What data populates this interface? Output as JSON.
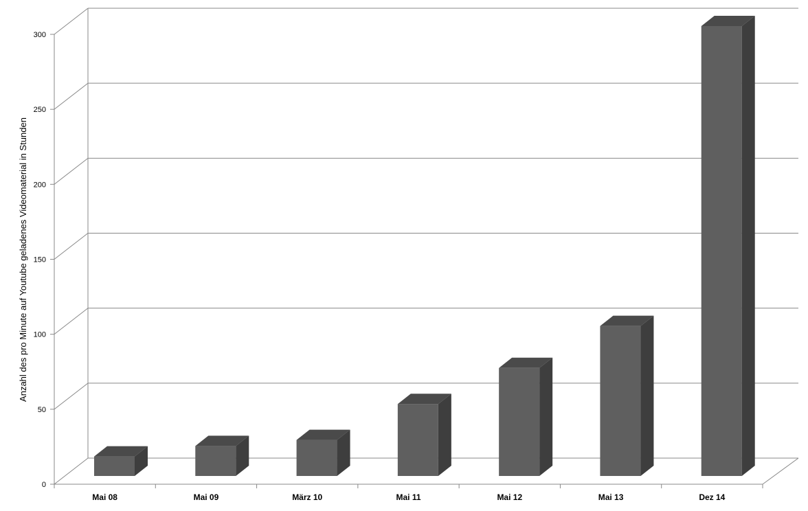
{
  "chart_data": {
    "type": "bar",
    "style": "3d-column",
    "title": "",
    "xlabel": "",
    "ylabel": "Anzahl des pro Minute auf Youtube geladenes Videomaterial in Stunden",
    "categories": [
      "Mai 08",
      "Mai 09",
      "März 10",
      "Mai 11",
      "Mai 12",
      "Mai 13",
      "Dez 14"
    ],
    "values": [
      13,
      20,
      24,
      48,
      72,
      100,
      300
    ],
    "ylim": [
      0,
      300
    ],
    "yticks": [
      "0",
      "50",
      "100",
      "150",
      "200",
      "250",
      "300"
    ],
    "grid": true,
    "colors": {
      "bar_front": "#5f5f5f",
      "bar_side": "#3e3e3e",
      "bar_top": "#4a4a4a",
      "grid": "#888888",
      "axis": "#888888"
    }
  }
}
